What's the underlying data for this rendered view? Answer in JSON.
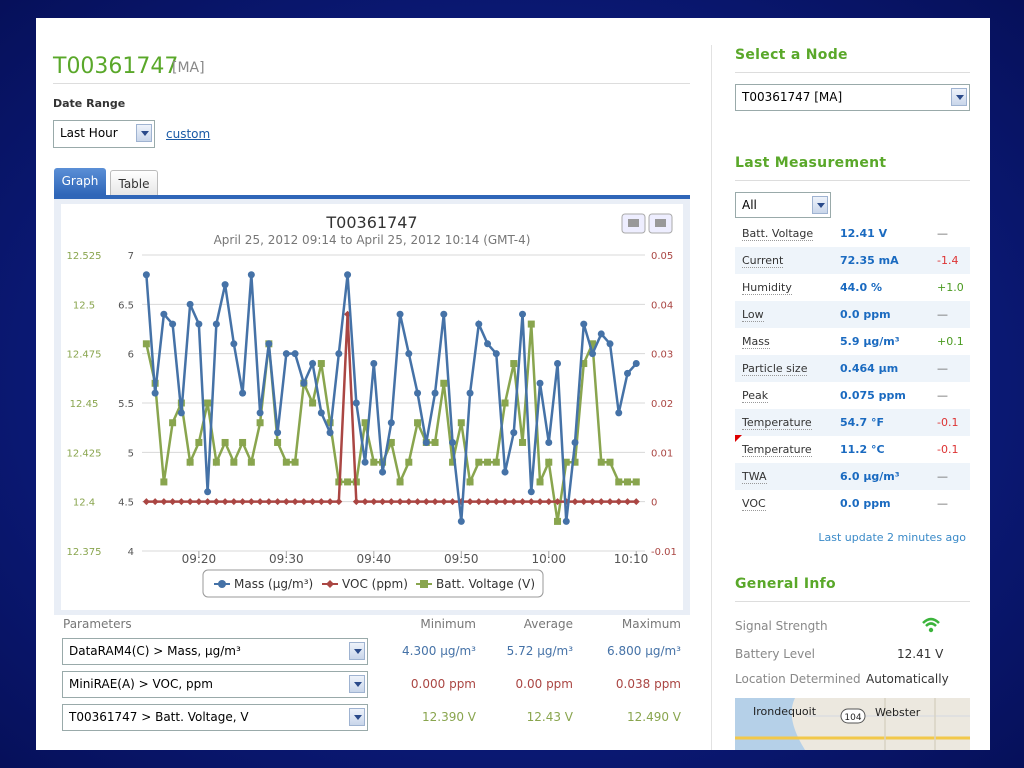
{
  "header": {
    "title": "T00361747",
    "tag": "[MA]",
    "date_range_label": "Date Range",
    "date_range_value": "Last Hour",
    "custom_link": "custom",
    "tabs": [
      "Graph",
      "Table"
    ]
  },
  "chart_data": {
    "type": "line",
    "title": "T00361747",
    "subtitle": "April 25, 2012 09:14 to April 25, 2012 10:14 (GMT-4)",
    "x": [
      554,
      555,
      556,
      557,
      558,
      559,
      560,
      561,
      562,
      563,
      564,
      565,
      566,
      567,
      568,
      569,
      570,
      571,
      572,
      573,
      574,
      575,
      576,
      577,
      578,
      579,
      580,
      581,
      582,
      583,
      584,
      585,
      586,
      587,
      588,
      589,
      590,
      591,
      592,
      593,
      594,
      595,
      596,
      597,
      598,
      599,
      600,
      601,
      602,
      603,
      604,
      605,
      606,
      607,
      608,
      609,
      610
    ],
    "xlim": [
      553.5,
      611
    ],
    "xticks": [
      {
        "value": 560,
        "label": "09:20"
      },
      {
        "value": 570,
        "label": "09:30"
      },
      {
        "value": 580,
        "label": "09:40"
      },
      {
        "value": 590,
        "label": "09:50"
      },
      {
        "value": 600,
        "label": "10:00"
      },
      {
        "value": 610,
        "label": "10:10"
      }
    ],
    "ylim": [
      4,
      7
    ],
    "yticks": [
      4,
      4.5,
      5,
      5.5,
      6,
      6.5,
      7
    ],
    "y2lim": [
      -0.01,
      0.05
    ],
    "y2ticks": [
      -0.01,
      0,
      0.01,
      0.02,
      0.03,
      0.04,
      0.05
    ],
    "y3lim": [
      12.375,
      12.525
    ],
    "y3ticks": [
      12.375,
      12.4,
      12.425,
      12.45,
      12.475,
      12.5,
      12.525
    ],
    "grid": true,
    "series": [
      {
        "name": "Mass (µg/m³)",
        "color": "#4572a7",
        "axis": "y",
        "marker": "circle",
        "values": [
          6.8,
          5.6,
          6.4,
          6.3,
          5.4,
          6.5,
          6.3,
          4.6,
          6.3,
          6.7,
          6.1,
          5.6,
          6.8,
          5.4,
          6.1,
          5.2,
          6.0,
          6.0,
          5.7,
          5.9,
          5.4,
          5.2,
          6.0,
          6.8,
          5.5,
          4.9,
          5.9,
          4.8,
          5.3,
          6.4,
          6.0,
          5.6,
          5.1,
          5.6,
          6.4,
          5.1,
          4.3,
          5.6,
          6.3,
          6.1,
          6.0,
          4.8,
          5.2,
          6.4,
          4.6,
          5.7,
          5.1,
          5.9,
          4.3,
          5.1,
          6.3,
          6.0,
          6.2,
          6.1,
          5.4,
          5.8,
          5.9
        ]
      },
      {
        "name": "VOC (ppm)",
        "color": "#aa4643",
        "axis": "y2",
        "marker": "diamond",
        "values": [
          0,
          0,
          0,
          0,
          0,
          0,
          0,
          0,
          0,
          0,
          0,
          0,
          0,
          0,
          0,
          0,
          0,
          0,
          0,
          0,
          0,
          0,
          0,
          0.038,
          0,
          0,
          0,
          0,
          0,
          0,
          0,
          0,
          0,
          0,
          0,
          0,
          0,
          0,
          0,
          0,
          0,
          0,
          0,
          0,
          0,
          0,
          0,
          0,
          0,
          0,
          0,
          0,
          0,
          0,
          0,
          0,
          0
        ]
      },
      {
        "name": "Batt. Voltage (V)",
        "color": "#89a54e",
        "axis": "y3",
        "marker": "square",
        "values": [
          12.48,
          12.46,
          12.41,
          12.44,
          12.45,
          12.42,
          12.43,
          12.45,
          12.42,
          12.43,
          12.42,
          12.43,
          12.42,
          12.44,
          12.48,
          12.43,
          12.42,
          12.42,
          12.46,
          12.45,
          12.47,
          12.44,
          12.41,
          12.41,
          12.41,
          12.44,
          12.42,
          12.42,
          12.43,
          12.41,
          12.42,
          12.44,
          12.43,
          12.43,
          12.46,
          12.42,
          12.44,
          12.41,
          12.42,
          12.42,
          12.42,
          12.45,
          12.47,
          12.43,
          12.49,
          12.41,
          12.42,
          12.39,
          12.42,
          12.42,
          12.47,
          12.48,
          12.42,
          12.42,
          12.41,
          12.41,
          12.41
        ]
      }
    ]
  },
  "parameters": {
    "headers": [
      "Parameters",
      "Minimum",
      "Average",
      "Maximum"
    ],
    "rows": [
      [
        "DataRAM4(C) > Mass, µg/m³",
        "4.300 µg/m³",
        "5.72 µg/m³",
        "6.800 µg/m³"
      ],
      [
        "MiniRAE(A) > VOC, ppm",
        "0.000 ppm",
        "0.00 ppm",
        "0.038 ppm"
      ],
      [
        "T00361747 > Batt. Voltage, V",
        "12.390 V",
        "12.43 V",
        "12.490 V"
      ]
    ]
  },
  "sidebar": {
    "select_node_title": "Select a Node",
    "node_value": "T00361747 [MA]",
    "last_measurement_title": "Last Measurement",
    "filter_value": "All",
    "measurements": [
      [
        "Batt. Voltage",
        "12.41 V",
        "—"
      ],
      [
        "Current",
        "72.35 mA",
        "-1.4"
      ],
      [
        "Humidity",
        "44.0 %",
        "+1.0"
      ],
      [
        "Low",
        "0.0 ppm",
        "—"
      ],
      [
        "Mass",
        "5.9 µg/m³",
        "+0.1"
      ],
      [
        "Particle size",
        "0.464 µm",
        "—"
      ],
      [
        "Peak",
        "0.075 ppm",
        "—"
      ],
      [
        "Temperature",
        "54.7 °F",
        "-0.1"
      ],
      [
        "Temperature",
        "11.2 °C",
        "-0.1"
      ],
      [
        "TWA",
        "6.0 µg/m³",
        "—"
      ],
      [
        "VOC",
        "0.0 ppm",
        "—"
      ]
    ],
    "last_update": "Last update 2 minutes ago",
    "general_info_title": "General Info",
    "info": [
      [
        "Signal Strength",
        null
      ],
      [
        "Battery Level",
        "12.41 V"
      ],
      [
        "Location Determined",
        "Automatically"
      ]
    ],
    "map_labels": [
      "Irondequoit",
      "104",
      "Webster"
    ]
  }
}
